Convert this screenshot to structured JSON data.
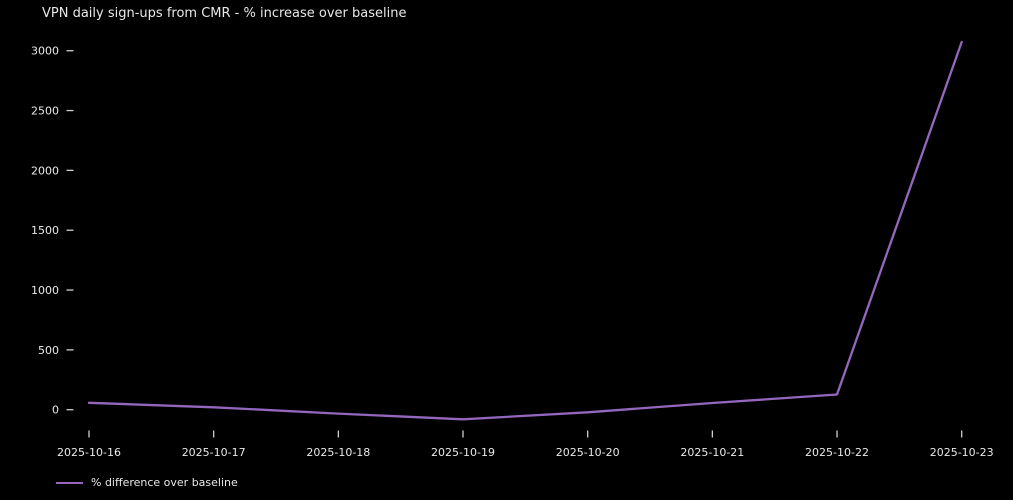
{
  "chart_data": {
    "type": "line",
    "title": "VPN daily sign-ups from CMR - % increase over baseline",
    "categories": [
      "2025-10-16",
      "2025-10-17",
      "2025-10-18",
      "2025-10-19",
      "2025-10-20",
      "2025-10-21",
      "2025-10-22",
      "2025-10-23"
    ],
    "series": [
      {
        "name": "% difference over baseline",
        "values": [
          58,
          20,
          -33,
          -80,
          -22,
          56,
          127,
          3073
        ],
        "color": "#9467bd"
      }
    ],
    "xlabel": "",
    "ylabel": "",
    "yticks": [
      0,
      500,
      1000,
      1500,
      2000,
      2500,
      3000
    ],
    "ylim": [
      -210,
      3160
    ],
    "grid": false,
    "legend_position": "bottom-left",
    "background_color": "#000000",
    "text_color": "#e8e8e8",
    "tick_color": "#cfcfcf"
  }
}
